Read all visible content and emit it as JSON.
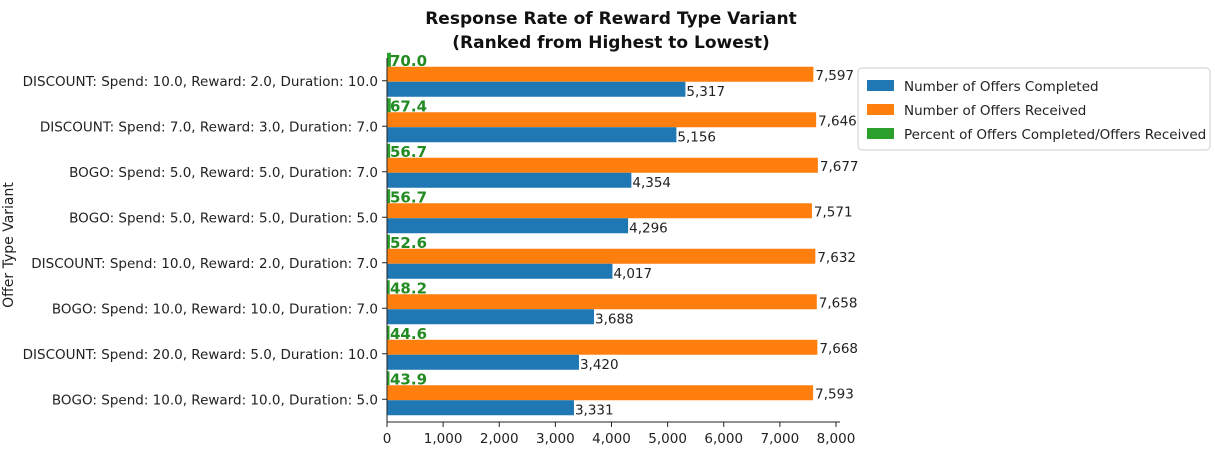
{
  "chart_data": {
    "type": "bar",
    "orientation": "horizontal",
    "title_line1": "Response Rate of Reward Type Variant",
    "title_line2": "(Ranked from Highest to Lowest)",
    "ylabel": "Offer Type Variant",
    "xlabel": "",
    "xlim": [
      0,
      8000
    ],
    "xticks": [
      0,
      1000,
      2000,
      3000,
      4000,
      5000,
      6000,
      7000,
      8000
    ],
    "xtick_labels": [
      "0",
      "1,000",
      "2,000",
      "3,000",
      "4,000",
      "5,000",
      "6,000",
      "7,000",
      "8,000"
    ],
    "legend_position": "upper-right-outside",
    "grid": false,
    "categories": [
      "DISCOUNT: Spend: 10.0, Reward: 2.0, Duration: 10.0",
      "DISCOUNT: Spend: 7.0, Reward: 3.0, Duration: 7.0",
      "BOGO: Spend: 5.0, Reward: 5.0, Duration: 7.0",
      "BOGO: Spend: 5.0, Reward: 5.0, Duration: 5.0",
      "DISCOUNT: Spend: 10.0, Reward: 2.0, Duration: 7.0",
      "BOGO: Spend: 10.0, Reward: 10.0, Duration: 7.0",
      "DISCOUNT: Spend: 20.0, Reward: 5.0, Duration: 10.0",
      "BOGO: Spend: 10.0, Reward: 10.0, Duration: 5.0"
    ],
    "series": [
      {
        "name": "Number of Offers Completed",
        "color": "#1f77b4",
        "values": [
          5317,
          5156,
          4354,
          4296,
          4017,
          3688,
          3420,
          3331
        ],
        "labels": [
          "5,317",
          "5,156",
          "4,354",
          "4,296",
          "4,017",
          "3,688",
          "3,420",
          "3,331"
        ]
      },
      {
        "name": "Number of Offers Received",
        "color": "#ff7f0e",
        "values": [
          7597,
          7646,
          7677,
          7571,
          7632,
          7658,
          7668,
          7593
        ],
        "labels": [
          "7,597",
          "7,646",
          "7,677",
          "7,571",
          "7,632",
          "7,658",
          "7,668",
          "7,593"
        ]
      },
      {
        "name": "Percent of Offers Completed/Offers Received",
        "color": "#2ca02c",
        "values": [
          70.0,
          67.4,
          56.7,
          56.7,
          52.6,
          48.2,
          44.6,
          43.9
        ],
        "labels": [
          "70.0",
          "67.4",
          "56.7",
          "56.7",
          "52.6",
          "48.2",
          "44.6",
          "43.9"
        ]
      }
    ]
  }
}
